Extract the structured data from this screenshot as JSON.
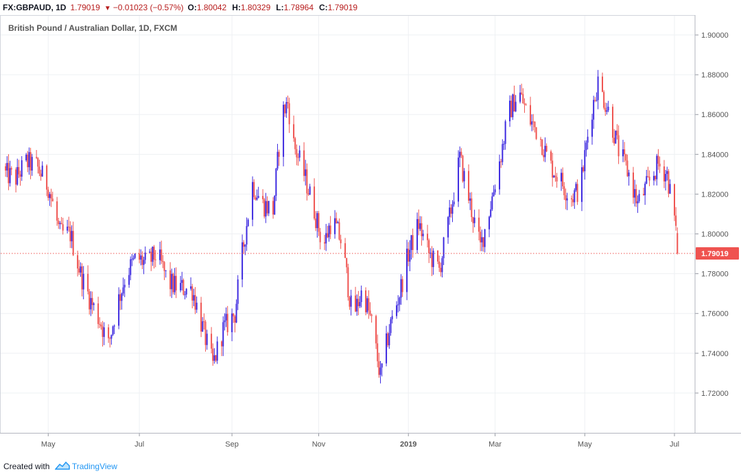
{
  "header": {
    "symbol": "FX:GBPAUD, 1D",
    "last": "1.79019",
    "change": "−0.01023 (−0.57%)",
    "o_label": "O:",
    "o_value": "1.80042",
    "h_label": "H:",
    "h_value": "1.80329",
    "l_label": "L:",
    "l_value": "1.78964",
    "c_label": "C:",
    "c_value": "1.79019",
    "down_arrow_icon": "triangle-down-icon"
  },
  "footer": {
    "created_with": "Created with",
    "brand": "TradingView",
    "brand_icon": "tradingview-logo-icon"
  },
  "colors": {
    "up": "#3d2ae0",
    "down": "#ef5350",
    "last_price_bg": "#ef5350",
    "grid": "#eef0f3",
    "axis_text": "#555555"
  },
  "chart_data": {
    "type": "candlestick",
    "title": "British Pound / Australian Dollar, 1D, FXCM",
    "x_ticks": [
      "May",
      "Jul",
      "Sep",
      "Nov",
      "2019",
      "Mar",
      "May",
      "Jul"
    ],
    "x_tick_dates": [
      "2018-05-01",
      "2018-07-02",
      "2018-09-03",
      "2018-11-01",
      "2019-01-01",
      "2019-03-01",
      "2019-05-01",
      "2019-07-01"
    ],
    "y_ticks": [
      "1.90000",
      "1.88000",
      "1.86000",
      "1.84000",
      "1.82000",
      "1.80000",
      "1.78000",
      "1.76000",
      "1.74000",
      "1.72000"
    ],
    "ylim": [
      1.7,
      1.91
    ],
    "xlim": [
      "2018-04-01",
      "2019-07-15"
    ],
    "last_price_label": "1.79019",
    "last_price": 1.79019,
    "grid": true,
    "path_close": [
      [
        "2018-04-02",
        1.83
      ],
      [
        "2018-04-09",
        1.828
      ],
      [
        "2018-04-16",
        1.836
      ],
      [
        "2018-04-23",
        1.834
      ],
      [
        "2018-05-01",
        1.824
      ],
      [
        "2018-05-09",
        1.8
      ],
      [
        "2018-05-16",
        1.8
      ],
      [
        "2018-05-23",
        1.78
      ],
      [
        "2018-05-30",
        1.766
      ],
      [
        "2018-06-06",
        1.755
      ],
      [
        "2018-06-11",
        1.744
      ],
      [
        "2018-06-16",
        1.762
      ],
      [
        "2018-06-23",
        1.78
      ],
      [
        "2018-06-30",
        1.788
      ],
      [
        "2018-07-07",
        1.785
      ],
      [
        "2018-07-14",
        1.79
      ],
      [
        "2018-07-22",
        1.775
      ],
      [
        "2018-07-30",
        1.773
      ],
      [
        "2018-08-07",
        1.772
      ],
      [
        "2018-08-15",
        1.75
      ],
      [
        "2018-08-21",
        1.734
      ],
      [
        "2018-08-28",
        1.752
      ],
      [
        "2018-09-05",
        1.76
      ],
      [
        "2018-09-10",
        1.79
      ],
      [
        "2018-09-17",
        1.825
      ],
      [
        "2018-09-24",
        1.815
      ],
      [
        "2018-10-01",
        1.812
      ],
      [
        "2018-10-07",
        1.86
      ],
      [
        "2018-10-11",
        1.866
      ],
      [
        "2018-10-15",
        1.845
      ],
      [
        "2018-10-22",
        1.83
      ],
      [
        "2018-10-29",
        1.812
      ],
      [
        "2018-11-04",
        1.793
      ],
      [
        "2018-11-10",
        1.808
      ],
      [
        "2018-11-17",
        1.795
      ],
      [
        "2018-11-24",
        1.758
      ],
      [
        "2018-12-01",
        1.772
      ],
      [
        "2018-12-07",
        1.755
      ],
      [
        "2018-12-13",
        1.728
      ],
      [
        "2018-12-19",
        1.752
      ],
      [
        "2018-12-26",
        1.77
      ],
      [
        "2019-01-01",
        1.79
      ],
      [
        "2019-01-08",
        1.805
      ],
      [
        "2019-01-15",
        1.79
      ],
      [
        "2019-01-22",
        1.782
      ],
      [
        "2019-01-29",
        1.808
      ],
      [
        "2019-02-05",
        1.838
      ],
      [
        "2019-02-12",
        1.815
      ],
      [
        "2019-02-19",
        1.793
      ],
      [
        "2019-02-26",
        1.815
      ],
      [
        "2019-03-05",
        1.84
      ],
      [
        "2019-03-10",
        1.86
      ],
      [
        "2019-03-17",
        1.872
      ],
      [
        "2019-03-24",
        1.858
      ],
      [
        "2019-03-31",
        1.85
      ],
      [
        "2019-04-07",
        1.835
      ],
      [
        "2019-04-14",
        1.828
      ],
      [
        "2019-04-21",
        1.818
      ],
      [
        "2019-04-28",
        1.823
      ],
      [
        "2019-05-05",
        1.86
      ],
      [
        "2019-05-10",
        1.876
      ],
      [
        "2019-05-17",
        1.862
      ],
      [
        "2019-05-24",
        1.842
      ],
      [
        "2019-05-31",
        1.83
      ],
      [
        "2019-06-06",
        1.815
      ],
      [
        "2019-06-13",
        1.825
      ],
      [
        "2019-06-20",
        1.835
      ],
      [
        "2019-06-26",
        1.83
      ],
      [
        "2019-07-01",
        1.808
      ],
      [
        "2019-07-03",
        1.79019
      ]
    ]
  }
}
